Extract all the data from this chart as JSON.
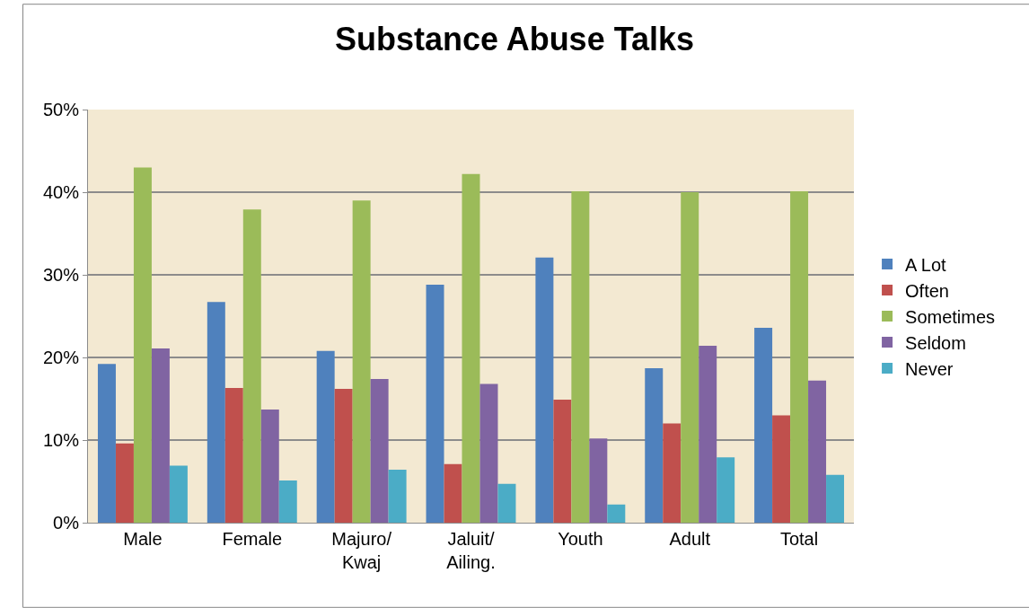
{
  "chart_data": {
    "type": "bar",
    "title": "Substance Abuse Talks",
    "categories": [
      "Male",
      "Female",
      "Majuro/\nKwaj",
      "Jaluit/\nAiling.",
      "Youth",
      "Adult",
      "Total"
    ],
    "series": [
      {
        "name": "A Lot",
        "color": "#4f81bd",
        "values": [
          19.2,
          26.7,
          20.8,
          28.8,
          32.1,
          18.7,
          23.6
        ]
      },
      {
        "name": "Often",
        "color": "#c0504d",
        "values": [
          9.6,
          16.3,
          16.2,
          7.1,
          14.9,
          12.0,
          13.0
        ]
      },
      {
        "name": "Sometimes",
        "color": "#9bbb59",
        "values": [
          43.0,
          37.9,
          39.0,
          42.2,
          40.1,
          40.0,
          40.1
        ]
      },
      {
        "name": "Seldom",
        "color": "#8064a2",
        "values": [
          21.1,
          13.7,
          17.4,
          16.8,
          10.2,
          21.4,
          17.2
        ]
      },
      {
        "name": "Never",
        "color": "#4bacc6",
        "values": [
          6.9,
          5.1,
          6.4,
          4.7,
          2.2,
          7.9,
          5.8
        ]
      }
    ],
    "ylim": [
      0,
      50
    ],
    "yticks": [
      {
        "value": 0,
        "label": "0%"
      },
      {
        "value": 10,
        "label": "10%"
      },
      {
        "value": 20,
        "label": "20%"
      },
      {
        "value": 30,
        "label": "30%"
      },
      {
        "value": 40,
        "label": "40%"
      },
      {
        "value": 50,
        "label": "50%"
      }
    ],
    "grid": "y",
    "legend": "right"
  }
}
